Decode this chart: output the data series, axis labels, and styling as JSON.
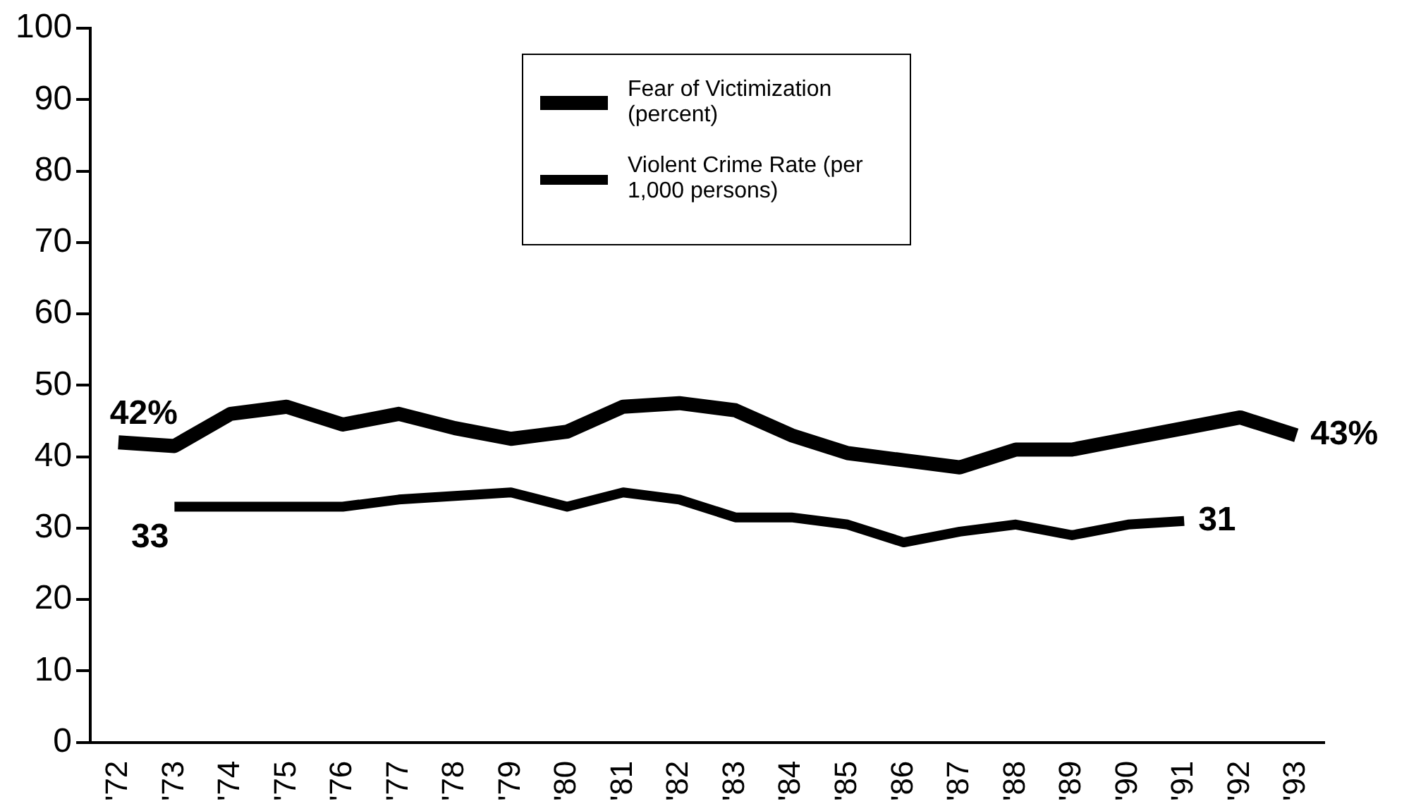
{
  "chart_data": {
    "type": "line",
    "categories": [
      "'72",
      "'73",
      "'74",
      "'75",
      "'76",
      "'77",
      "'78",
      "'79",
      "'80",
      "'81",
      "'82",
      "'83",
      "'84",
      "'85",
      "'86",
      "'87",
      "'88",
      "'89",
      "'90",
      "'91",
      "'92",
      "'93"
    ],
    "series": [
      {
        "name": "Fear of Victimization (percent)",
        "color": "#000000",
        "values": [
          42,
          41.5,
          46,
          47,
          44.5,
          46,
          44,
          42.5,
          43.5,
          47,
          47.5,
          46.5,
          43,
          40.5,
          39.5,
          38.5,
          41,
          41,
          42.5,
          44,
          45.5,
          43
        ]
      },
      {
        "name": "Violent Crime Rate (per 1,000 persons)",
        "color": "#000000",
        "values": [
          null,
          33,
          33,
          33,
          33,
          34,
          34.5,
          35,
          33,
          35,
          34,
          31.5,
          31.5,
          30.5,
          28,
          29.5,
          30.5,
          29,
          30.5,
          31,
          null,
          null
        ]
      }
    ],
    "ylim": [
      0,
      100
    ],
    "yticks": [
      0,
      10,
      20,
      30,
      40,
      50,
      60,
      70,
      80,
      90,
      100
    ],
    "grid": false,
    "legend": "top",
    "marker": "none",
    "annotations": [
      {
        "text": "42%",
        "x": "'72",
        "y": 42
      },
      {
        "text": "33",
        "x": "'73",
        "y": 33
      },
      {
        "text": "31",
        "x": "'91",
        "y": 31
      },
      {
        "text": "43%",
        "x": "'93",
        "y": 43
      }
    ]
  }
}
